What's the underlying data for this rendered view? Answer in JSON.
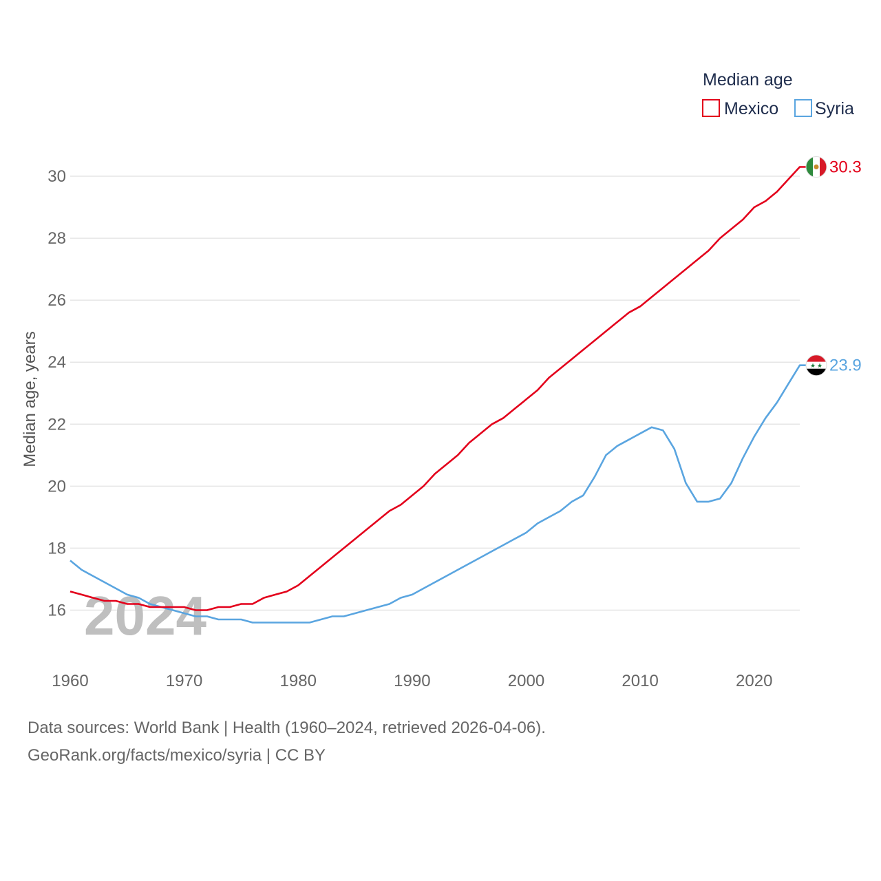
{
  "chart_data": {
    "type": "line",
    "title": "Median age",
    "ylabel": "Median age, years",
    "xlabel": "",
    "xlim": [
      1960,
      2024
    ],
    "ylim": [
      14.9,
      30.8
    ],
    "xticks": [
      1960,
      1970,
      1980,
      1990,
      2000,
      2010,
      2020
    ],
    "yticks": [
      16,
      18,
      20,
      22,
      24,
      26,
      28,
      30
    ],
    "grid": true,
    "legend_position": "top-right",
    "year_watermark": "2024",
    "x": [
      1960,
      1961,
      1962,
      1963,
      1964,
      1965,
      1966,
      1967,
      1968,
      1969,
      1970,
      1971,
      1972,
      1973,
      1974,
      1975,
      1976,
      1977,
      1978,
      1979,
      1980,
      1981,
      1982,
      1983,
      1984,
      1985,
      1986,
      1987,
      1988,
      1989,
      1990,
      1991,
      1992,
      1993,
      1994,
      1995,
      1996,
      1997,
      1998,
      1999,
      2000,
      2001,
      2002,
      2003,
      2004,
      2005,
      2006,
      2007,
      2008,
      2009,
      2010,
      2011,
      2012,
      2013,
      2014,
      2015,
      2016,
      2017,
      2018,
      2019,
      2020,
      2021,
      2022,
      2023,
      2024
    ],
    "series": [
      {
        "name": "Mexico",
        "color": "#e3001b",
        "end_label": "30.3",
        "flag_icon": "mexico-flag-icon",
        "values": [
          16.6,
          16.5,
          16.4,
          16.3,
          16.3,
          16.2,
          16.2,
          16.1,
          16.1,
          16.1,
          16.1,
          16.0,
          16.0,
          16.1,
          16.1,
          16.2,
          16.2,
          16.4,
          16.5,
          16.6,
          16.8,
          17.1,
          17.4,
          17.7,
          18.0,
          18.3,
          18.6,
          18.9,
          19.2,
          19.4,
          19.7,
          20.0,
          20.4,
          20.7,
          21.0,
          21.4,
          21.7,
          22.0,
          22.2,
          22.5,
          22.8,
          23.1,
          23.5,
          23.8,
          24.1,
          24.4,
          24.7,
          25.0,
          25.3,
          25.6,
          25.8,
          26.1,
          26.4,
          26.7,
          27.0,
          27.3,
          27.6,
          28.0,
          28.3,
          28.6,
          29.0,
          29.2,
          29.5,
          29.9,
          30.3
        ]
      },
      {
        "name": "Syria",
        "color": "#5aa5e0",
        "end_label": "23.9",
        "flag_icon": "syria-flag-icon",
        "values": [
          17.6,
          17.3,
          17.1,
          16.9,
          16.7,
          16.5,
          16.4,
          16.2,
          16.1,
          16.0,
          15.9,
          15.8,
          15.8,
          15.7,
          15.7,
          15.7,
          15.6,
          15.6,
          15.6,
          15.6,
          15.6,
          15.6,
          15.7,
          15.8,
          15.8,
          15.9,
          16.0,
          16.1,
          16.2,
          16.4,
          16.5,
          16.7,
          16.9,
          17.1,
          17.3,
          17.5,
          17.7,
          17.9,
          18.1,
          18.3,
          18.5,
          18.8,
          19.0,
          19.2,
          19.5,
          19.7,
          20.3,
          21.0,
          21.3,
          21.5,
          21.7,
          21.9,
          21.8,
          21.2,
          20.1,
          19.5,
          19.5,
          19.6,
          20.1,
          20.9,
          21.6,
          22.2,
          22.7,
          23.3,
          23.9
        ]
      }
    ]
  },
  "footer": {
    "sources": "Data sources: World Bank | Health (1960–2024, retrieved 2026-04-06).",
    "attribution": "GeoRank.org/facts/mexico/syria | CC BY"
  }
}
